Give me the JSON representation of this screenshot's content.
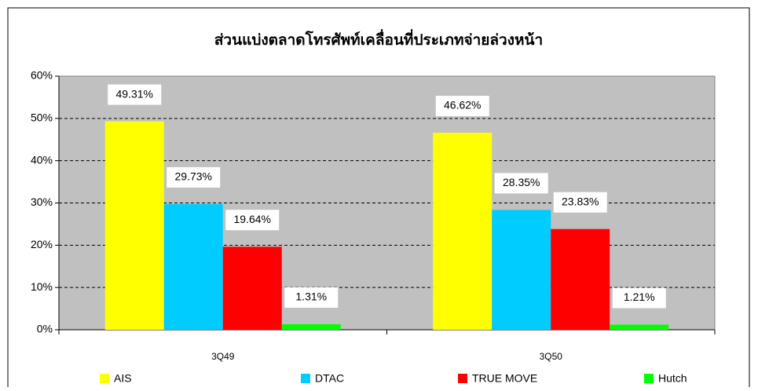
{
  "chart_data": {
    "type": "bar",
    "title": "ส่วนแบ่งตลาดโทรศัพท์เคลื่อนที่ประเภทจ่ายล่วงหน้า",
    "categories": [
      "3Q49",
      "3Q50"
    ],
    "series": [
      {
        "name": "AIS",
        "color": "#ffff00",
        "values": [
          49.31,
          46.62
        ],
        "value_labels": [
          "49.31%",
          "46.62%"
        ]
      },
      {
        "name": "DTAC",
        "color": "#00ccff",
        "values": [
          29.73,
          28.35
        ],
        "value_labels": [
          "29.73%",
          "28.35%"
        ]
      },
      {
        "name": "TRUE MOVE",
        "color": "#ff0000",
        "values": [
          19.64,
          23.83
        ],
        "value_labels": [
          "19.64%",
          "23.83%"
        ]
      },
      {
        "name": "Hutch",
        "color": "#00ff00",
        "values": [
          1.31,
          1.21
        ],
        "value_labels": [
          "1.31%",
          "1.21%"
        ]
      }
    ],
    "ylim": [
      0,
      60
    ],
    "yticks": [
      {
        "value": 0,
        "label": "0%"
      },
      {
        "value": 10,
        "label": "10%"
      },
      {
        "value": 20,
        "label": "20%"
      },
      {
        "value": 30,
        "label": "30%"
      },
      {
        "value": 40,
        "label": "40%"
      },
      {
        "value": 50,
        "label": "50%"
      },
      {
        "value": 60,
        "label": "60%"
      }
    ],
    "grid": true,
    "legend": "bottom"
  }
}
